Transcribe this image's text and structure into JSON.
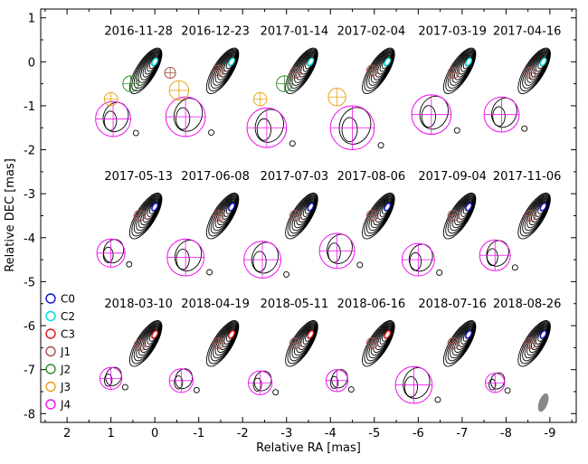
{
  "chart_data": {
    "type": "contour-panels",
    "xlabel": "Relative RA [mas]",
    "ylabel": "Relative DEC [mas]",
    "xlim": [
      2.6,
      -9.6
    ],
    "ylim": [
      -8.2,
      1.2
    ],
    "x_ticks": [
      2,
      1,
      0,
      -1,
      -2,
      -3,
      -4,
      -5,
      -6,
      -7,
      -8,
      -9
    ],
    "x_tick_labels": [
      "2",
      "1",
      "0",
      "-1",
      "-2",
      "-3",
      "-4",
      "-5",
      "-6",
      "-7",
      "-8",
      "-9"
    ],
    "y_ticks": [
      1,
      0,
      -1,
      -2,
      -3,
      -4,
      -5,
      -6,
      -7,
      -8
    ],
    "y_tick_labels": [
      "1",
      "0",
      "-1",
      "-2",
      "-3",
      "-4",
      "-5",
      "-6",
      "-7",
      "-8"
    ],
    "legend": [
      {
        "label": "C0",
        "color": "#1010cc"
      },
      {
        "label": "C2",
        "color": "#00d8d8"
      },
      {
        "label": "C3",
        "color": "#dd1111"
      },
      {
        "label": "J1",
        "color": "#a0524a"
      },
      {
        "label": "J2",
        "color": "#2e8b2e"
      },
      {
        "label": "J3",
        "color": "#e8a317"
      },
      {
        "label": "J4",
        "color": "#ee11ee"
      }
    ],
    "epochs": [
      {
        "date": "2016-11-28",
        "core": [
          0.0,
          0.0
        ],
        "main": "C2",
        "j1": [
          -0.35,
          -0.25
        ],
        "j4": [
          0.95,
          -1.3,
          0.4
        ],
        "extra": [
          {
            "comp": "J2",
            "x": 0.55,
            "y": -0.5,
            "r": 0.18
          },
          {
            "comp": "J3",
            "x": 1.0,
            "y": -0.85,
            "r": 0.15
          }
        ]
      },
      {
        "date": "2016-12-23",
        "core": [
          -1.75,
          0.0
        ],
        "main": "C2",
        "j1": [
          -1.45,
          -0.2
        ],
        "j4": [
          -0.7,
          -1.25,
          0.45
        ],
        "extra": [
          {
            "comp": "J3",
            "x": -0.55,
            "y": -0.65,
            "r": 0.22
          }
        ]
      },
      {
        "date": "2017-01-14",
        "core": [
          -3.55,
          0.0
        ],
        "main": "C2",
        "j1": [
          -3.2,
          -0.25
        ],
        "j4": [
          -2.55,
          -1.5,
          0.45
        ],
        "extra": [
          {
            "comp": "J2",
            "x": -2.95,
            "y": -0.5,
            "r": 0.18
          },
          {
            "comp": "J3",
            "x": -2.4,
            "y": -0.85,
            "r": 0.15
          }
        ]
      },
      {
        "date": "2017-02-04",
        "core": [
          -5.3,
          0.0
        ],
        "main": "C2",
        "j1": [
          -4.95,
          -0.2
        ],
        "j4": [
          -4.5,
          -1.5,
          0.5
        ],
        "extra": [
          {
            "comp": "J3",
            "x": -4.15,
            "y": -0.8,
            "r": 0.2
          }
        ]
      },
      {
        "date": "2017-03-19",
        "core": [
          -7.15,
          0.0
        ],
        "main": "C2",
        "j1": [
          -6.8,
          -0.25
        ],
        "j4": [
          -6.3,
          -1.2,
          0.45
        ],
        "extra": []
      },
      {
        "date": "2017-04-16",
        "core": [
          -8.85,
          0.0
        ],
        "main": "C2",
        "j1": [
          -8.55,
          -0.25
        ],
        "j4": [
          -7.9,
          -1.2,
          0.4
        ],
        "extra": []
      },
      {
        "date": "2017-05-13",
        "core": [
          0.0,
          -3.3
        ],
        "main": "C0",
        "j1": [
          0.35,
          -3.5
        ],
        "j4": [
          1.0,
          -4.35,
          0.32
        ],
        "extra": []
      },
      {
        "date": "2017-06-08",
        "core": [
          -1.75,
          -3.3
        ],
        "main": "C0",
        "j1": [
          -1.45,
          -3.5
        ],
        "j4": [
          -0.7,
          -4.45,
          0.42
        ],
        "extra": []
      },
      {
        "date": "2017-07-03",
        "core": [
          -3.55,
          -3.3
        ],
        "main": "C0",
        "j1": [
          -3.2,
          -3.5
        ],
        "j4": [
          -2.45,
          -4.5,
          0.42
        ],
        "extra": []
      },
      {
        "date": "2017-08-06",
        "core": [
          -5.3,
          -3.3
        ],
        "main": "C0",
        "j1": [
          -4.95,
          -3.5
        ],
        "j4": [
          -4.15,
          -4.3,
          0.4
        ],
        "extra": []
      },
      {
        "date": "2017-09-04",
        "core": [
          -7.15,
          -3.3
        ],
        "main": "C0",
        "j1": [
          -6.8,
          -3.5
        ],
        "j4": [
          -6.0,
          -4.5,
          0.37
        ],
        "extra": []
      },
      {
        "date": "2017-11-06",
        "core": [
          -8.85,
          -3.3
        ],
        "main": "C0",
        "j1": [
          -8.55,
          -3.5
        ],
        "j4": [
          -7.75,
          -4.4,
          0.35
        ],
        "extra": []
      },
      {
        "date": "2018-03-10",
        "core": [
          0.0,
          -6.2
        ],
        "main": "C3",
        "j1": [
          0.35,
          -6.45
        ],
        "j4": [
          1.0,
          -7.2,
          0.25
        ],
        "extra": []
      },
      {
        "date": "2018-04-19",
        "core": [
          -1.75,
          -6.2
        ],
        "main": "C3",
        "j1": [
          -1.45,
          -6.4
        ],
        "j4": [
          -0.6,
          -7.25,
          0.27
        ],
        "extra": []
      },
      {
        "date": "2018-05-11",
        "core": [
          -3.55,
          -6.2
        ],
        "main": "C3",
        "j1": [
          -3.2,
          -6.4
        ],
        "j4": [
          -2.4,
          -7.3,
          0.27
        ],
        "extra": []
      },
      {
        "date": "2018-06-16",
        "core": [
          -5.3,
          -6.2
        ],
        "main": "C3",
        "j1": [
          -4.95,
          -6.4
        ],
        "j4": [
          -4.15,
          -7.25,
          0.25
        ],
        "extra": []
      },
      {
        "date": "2018-07-16",
        "core": [
          -7.15,
          -6.2
        ],
        "main": "C0",
        "j1": [
          -6.8,
          -6.4
        ],
        "j4": [
          -5.9,
          -7.35,
          0.42
        ],
        "extra": []
      },
      {
        "date": "2018-08-26",
        "core": [
          -8.85,
          -6.2
        ],
        "main": "C0",
        "j1": [
          -8.55,
          -6.4
        ],
        "j4": [
          -7.75,
          -7.3,
          0.22
        ],
        "extra": []
      }
    ],
    "beam": {
      "x": -8.85,
      "y": -7.75,
      "major": 0.22,
      "minor": 0.1
    }
  }
}
